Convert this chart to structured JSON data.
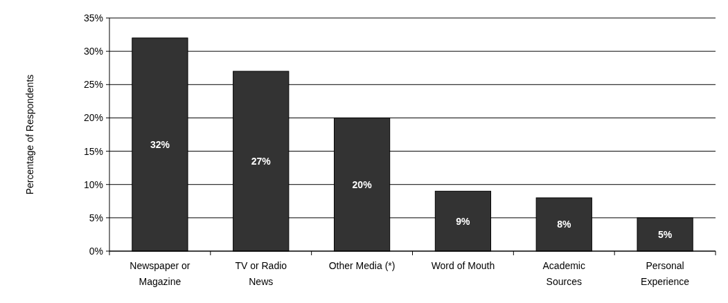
{
  "chart_data": {
    "type": "bar",
    "ylabel": "Percentage of Respondents",
    "categories": [
      "Newspaper or Magazine",
      "TV or Radio News",
      "Other Media (*)",
      "Word of Mouth",
      "Academic Sources",
      "Personal Experience"
    ],
    "values": [
      32,
      27,
      20,
      9,
      8,
      5
    ],
    "color": "#333333",
    "value_labels": [
      "32%",
      "27%",
      "20%",
      "9%",
      "8%",
      "5%"
    ],
    "ylim": [
      0,
      35
    ],
    "yticks": [
      {
        "value": 0,
        "label": "0%"
      },
      {
        "value": 5,
        "label": "5%"
      },
      {
        "value": 10,
        "label": "10%"
      },
      {
        "value": 15,
        "label": "15%"
      },
      {
        "value": 20,
        "label": "20%"
      },
      {
        "value": 25,
        "label": "25%"
      },
      {
        "value": 30,
        "label": "30%"
      },
      {
        "value": 35,
        "label": "35%"
      }
    ],
    "grid": "y"
  }
}
